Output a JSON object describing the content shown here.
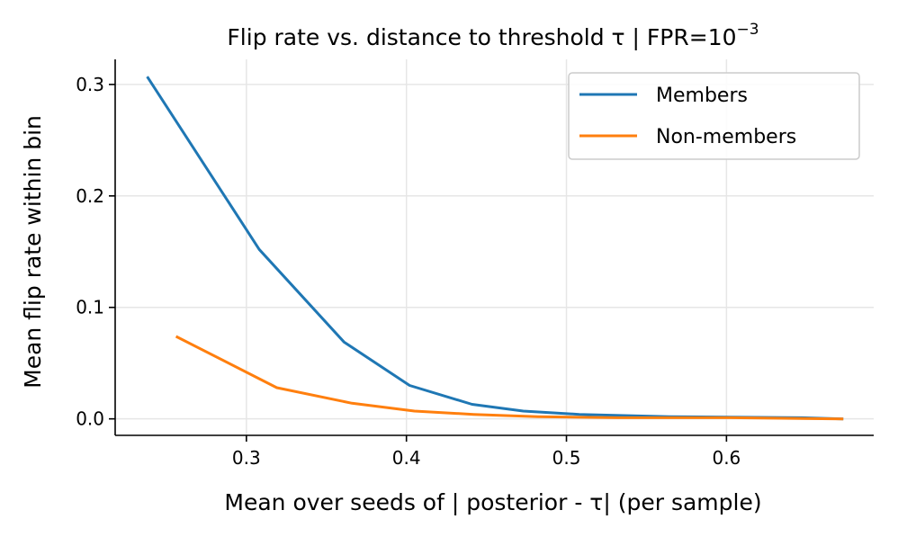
{
  "chart_data": {
    "type": "line",
    "title": "Flip rate vs. distance to threshold τ  |  FPR=10",
    "title_exponent": "−3",
    "xlabel": "Mean over seeds of | posterior - τ| (per sample)",
    "ylabel": "Mean flip rate within bin",
    "xlim": [
      0.218,
      0.692
    ],
    "ylim": [
      -0.0148,
      0.3225
    ],
    "xticks": [
      0.3,
      0.4,
      0.5,
      0.6
    ],
    "xtick_labels": [
      "0.3",
      "0.4",
      "0.5",
      "0.6"
    ],
    "yticks": [
      0.0,
      0.1,
      0.2,
      0.3
    ],
    "ytick_labels": [
      "0.0",
      "0.1",
      "0.2",
      "0.3"
    ],
    "grid": true,
    "legend_position": "top-right",
    "series": [
      {
        "name": "Members",
        "color": "#1f77b4",
        "x": [
          0.238,
          0.308,
          0.361,
          0.402,
          0.441,
          0.473,
          0.508,
          0.564,
          0.647,
          0.673
        ],
        "y": [
          0.307,
          0.152,
          0.069,
          0.03,
          0.013,
          0.007,
          0.004,
          0.002,
          0.001,
          0.0
        ]
      },
      {
        "name": "Non-members",
        "color": "#ff7f0e",
        "x": [
          0.256,
          0.319,
          0.366,
          0.405,
          0.442,
          0.482,
          0.532,
          0.603,
          0.673
        ],
        "y": [
          0.074,
          0.028,
          0.014,
          0.007,
          0.004,
          0.002,
          0.001,
          0.001,
          0.0
        ]
      }
    ]
  }
}
